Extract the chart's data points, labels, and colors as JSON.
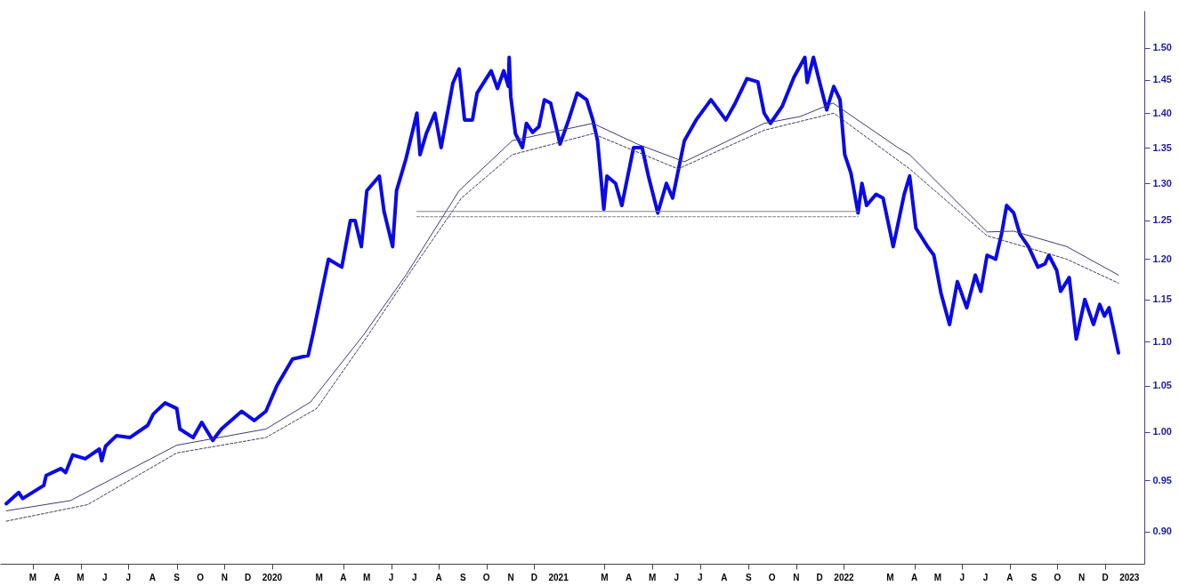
{
  "chart_data": {
    "type": "line",
    "log": true,
    "xlim": [
      "2019-01-18",
      "2023-01-20"
    ],
    "ylim": [
      0.87,
      1.56
    ],
    "yticks": [
      {
        "value": 0.9,
        "label": "0.90"
      },
      {
        "value": 0.95,
        "label": "0.95"
      },
      {
        "value": 1.0,
        "label": "1.00"
      },
      {
        "value": 1.05,
        "label": "1.05"
      },
      {
        "value": 1.1,
        "label": "1.10"
      },
      {
        "value": 1.15,
        "label": "1.15"
      },
      {
        "value": 1.2,
        "label": "1.20"
      },
      {
        "value": 1.25,
        "label": "1.25"
      },
      {
        "value": 1.3,
        "label": "1.30"
      },
      {
        "value": 1.35,
        "label": "1.35"
      },
      {
        "value": 1.4,
        "label": "1.40"
      },
      {
        "value": 1.45,
        "label": "1.45"
      },
      {
        "value": 1.5,
        "label": "1.50"
      }
    ],
    "xticks": [
      {
        "value": "2019-03",
        "label": "M"
      },
      {
        "value": "2019-04",
        "label": "A"
      },
      {
        "value": "2019-05",
        "label": "M"
      },
      {
        "value": "2019-06",
        "label": "J"
      },
      {
        "value": "2019-07",
        "label": "J"
      },
      {
        "value": "2019-08",
        "label": "A"
      },
      {
        "value": "2019-09",
        "label": "S"
      },
      {
        "value": "2019-10",
        "label": "O"
      },
      {
        "value": "2019-11",
        "label": "N"
      },
      {
        "value": "2019-12",
        "label": "D"
      },
      {
        "value": "2020-01",
        "label": "2020"
      },
      {
        "value": "2020-03",
        "label": "M"
      },
      {
        "value": "2020-04",
        "label": "A"
      },
      {
        "value": "2020-05",
        "label": "M"
      },
      {
        "value": "2020-06",
        "label": "J"
      },
      {
        "value": "2020-07",
        "label": "J"
      },
      {
        "value": "2020-08",
        "label": "A"
      },
      {
        "value": "2020-09",
        "label": "S"
      },
      {
        "value": "2020-10",
        "label": "O"
      },
      {
        "value": "2020-11",
        "label": "N"
      },
      {
        "value": "2020-12",
        "label": "D"
      },
      {
        "value": "2021-01",
        "label": "2021"
      },
      {
        "value": "2021-03",
        "label": "M"
      },
      {
        "value": "2021-04",
        "label": "A"
      },
      {
        "value": "2021-05",
        "label": "M"
      },
      {
        "value": "2021-06",
        "label": "J"
      },
      {
        "value": "2021-07",
        "label": "J"
      },
      {
        "value": "2021-08",
        "label": "A"
      },
      {
        "value": "2021-09",
        "label": "S"
      },
      {
        "value": "2021-10",
        "label": "O"
      },
      {
        "value": "2021-11",
        "label": "N"
      },
      {
        "value": "2021-12",
        "label": "D"
      },
      {
        "value": "2022-01",
        "label": "2022"
      },
      {
        "value": "2022-03",
        "label": "M"
      },
      {
        "value": "2022-04",
        "label": "A"
      },
      {
        "value": "2022-05",
        "label": "M"
      },
      {
        "value": "2022-06",
        "label": "J"
      },
      {
        "value": "2022-07",
        "label": "J"
      },
      {
        "value": "2022-08",
        "label": "A"
      },
      {
        "value": "2022-09",
        "label": "S"
      },
      {
        "value": "2022-10",
        "label": "O"
      },
      {
        "value": "2022-11",
        "label": "N"
      },
      {
        "value": "2022-12",
        "label": "D"
      },
      {
        "value": "2023-01",
        "label": "2023"
      }
    ],
    "series": [
      {
        "color": "#0a0ae8",
        "line_style": "solid",
        "x": [
          "2019-01-26",
          "2019-02-11",
          "2019-02-16",
          "2019-03-15",
          "2019-03-18",
          "2019-04-06",
          "2019-04-12",
          "2019-04-21",
          "2019-05-07",
          "2019-05-25",
          "2019-05-28",
          "2019-06-02",
          "2019-06-16",
          "2019-07-03",
          "2019-07-26",
          "2019-08-02",
          "2019-08-17",
          "2019-09-01",
          "2019-09-05",
          "2019-09-22",
          "2019-10-03",
          "2019-10-17",
          "2019-10-28",
          "2019-11-23",
          "2019-12-09",
          "2019-12-24",
          "2020-01-07",
          "2020-01-27",
          "2020-02-16",
          "2020-02-22",
          "2020-03-13",
          "2020-03-30",
          "2020-04-10",
          "2020-04-16",
          "2020-04-24",
          "2020-05-01",
          "2020-05-17",
          "2020-05-23",
          "2020-06-03",
          "2020-06-08",
          "2020-06-20",
          "2020-07-04",
          "2020-07-08",
          "2020-07-16",
          "2020-07-27",
          "2020-08-04",
          "2020-08-19",
          "2020-08-27",
          "2020-09-03",
          "2020-09-13",
          "2020-09-19",
          "2020-10-07",
          "2020-10-15",
          "2020-10-23",
          "2020-10-29",
          "2020-10-30",
          "2020-11-01",
          "2020-11-07",
          "2020-11-16",
          "2020-11-21",
          "2020-11-29",
          "2020-12-07",
          "2020-12-14",
          "2020-12-22",
          "2021-01-03",
          "2021-01-14",
          "2021-01-25",
          "2021-02-06",
          "2021-02-14",
          "2021-02-20",
          "2021-02-28",
          "2021-03-04",
          "2021-03-15",
          "2021-03-23",
          "2021-04-07",
          "2021-04-18",
          "2021-04-26",
          "2021-05-08",
          "2021-05-19",
          "2021-05-27",
          "2021-06-11",
          "2021-06-26",
          "2021-07-15",
          "2021-08-03",
          "2021-08-15",
          "2021-08-30",
          "2021-09-13",
          "2021-09-21",
          "2021-09-29",
          "2021-10-14",
          "2021-10-29",
          "2021-11-12",
          "2021-11-15",
          "2021-11-23",
          "2021-12-01",
          "2021-12-10",
          "2021-12-19",
          "2021-12-27",
          "2022-01-02",
          "2022-01-10",
          "2022-01-19",
          "2022-01-24",
          "2022-01-30",
          "2022-02-11",
          "2022-02-20",
          "2022-03-05",
          "2022-03-19",
          "2022-03-26",
          "2022-04-03",
          "2022-04-18",
          "2022-04-26",
          "2022-05-05",
          "2022-05-16",
          "2022-05-26",
          "2022-06-07",
          "2022-06-18",
          "2022-06-25",
          "2022-07-03",
          "2022-07-14",
          "2022-07-22",
          "2022-07-28",
          "2022-08-06",
          "2022-08-14",
          "2022-08-25",
          "2022-09-06",
          "2022-09-15",
          "2022-09-20",
          "2022-09-30",
          "2022-10-05",
          "2022-10-16",
          "2022-10-25",
          "2022-11-05",
          "2022-11-16",
          "2022-11-24",
          "2022-11-30",
          "2022-12-06",
          "2022-12-18"
        ],
        "values": [
          0.927,
          0.938,
          0.932,
          0.945,
          0.955,
          0.962,
          0.958,
          0.976,
          0.972,
          0.982,
          0.97,
          0.985,
          0.996,
          0.994,
          1.007,
          1.019,
          1.031,
          1.025,
          1.003,
          0.994,
          1.01,
          0.991,
          1.003,
          1.022,
          1.012,
          1.022,
          1.05,
          1.08,
          1.084,
          1.108,
          1.2,
          1.19,
          1.25,
          1.25,
          1.216,
          1.29,
          1.31,
          1.262,
          1.216,
          1.29,
          1.334,
          1.4,
          1.34,
          1.37,
          1.4,
          1.35,
          1.445,
          1.467,
          1.39,
          1.39,
          1.43,
          1.464,
          1.437,
          1.464,
          1.44,
          1.485,
          1.425,
          1.37,
          1.35,
          1.385,
          1.372,
          1.38,
          1.42,
          1.415,
          1.355,
          1.39,
          1.43,
          1.42,
          1.39,
          1.36,
          1.265,
          1.31,
          1.3,
          1.27,
          1.35,
          1.35,
          1.31,
          1.26,
          1.3,
          1.28,
          1.36,
          1.39,
          1.42,
          1.39,
          1.415,
          1.452,
          1.447,
          1.4,
          1.385,
          1.41,
          1.454,
          1.485,
          1.446,
          1.485,
          1.446,
          1.405,
          1.44,
          1.42,
          1.34,
          1.314,
          1.26,
          1.3,
          1.27,
          1.285,
          1.28,
          1.216,
          1.285,
          1.31,
          1.24,
          1.216,
          1.205,
          1.158,
          1.12,
          1.172,
          1.14,
          1.18,
          1.16,
          1.205,
          1.2,
          1.235,
          1.27,
          1.26,
          1.232,
          1.216,
          1.19,
          1.194,
          1.205,
          1.186,
          1.16,
          1.177,
          1.103,
          1.15,
          1.12,
          1.144,
          1.13,
          1.14,
          1.087
        ]
      },
      {
        "color": "#3c3c70",
        "line_style": "solid",
        "x": [
          "2019-01-26",
          "2019-04-18",
          "2019-09-01",
          "2019-12-24",
          "2020-02-19",
          "2020-04-27",
          "2020-06-20",
          "2020-08-27",
          "2020-11-03",
          "2021-02-14",
          "2021-04-12",
          "2021-06-11",
          "2021-09-21",
          "2021-11-06",
          "2021-12-18",
          "2022-03-11",
          "2022-03-26",
          "2022-07-03",
          "2022-08-06",
          "2022-10-13",
          "2022-12-18"
        ],
        "values": [
          0.92,
          0.93,
          0.986,
          1.003,
          1.032,
          1.108,
          1.18,
          1.29,
          1.36,
          1.385,
          1.355,
          1.33,
          1.385,
          1.395,
          1.415,
          1.35,
          1.34,
          1.235,
          1.236,
          1.216,
          1.18
        ]
      },
      {
        "color": "#3c3c60",
        "line_style": "dashed",
        "x": [
          "2019-01-26",
          "2019-05-10",
          "2019-09-01",
          "2019-12-24",
          "2020-02-27",
          "2020-05-03",
          "2020-06-23",
          "2020-08-30",
          "2020-11-03",
          "2021-02-14",
          "2021-06-03",
          "2021-09-21",
          "2021-12-19",
          "2022-03-26",
          "2022-07-03",
          "2022-08-06",
          "2022-10-13",
          "2022-12-18"
        ],
        "values": [
          0.91,
          0.926,
          0.978,
          0.994,
          1.025,
          1.108,
          1.18,
          1.28,
          1.34,
          1.37,
          1.32,
          1.375,
          1.4,
          1.32,
          1.23,
          1.22,
          1.2,
          1.17
        ]
      },
      {
        "color": "#808080",
        "line_style": "solid",
        "x": [
          "2020-07-04",
          "2022-01-19"
        ],
        "values": [
          1.262,
          1.262
        ]
      },
      {
        "color": "#808080",
        "line_style": "dashed",
        "x": [
          "2020-07-04",
          "2022-01-19"
        ],
        "values": [
          1.255,
          1.255
        ]
      }
    ]
  }
}
